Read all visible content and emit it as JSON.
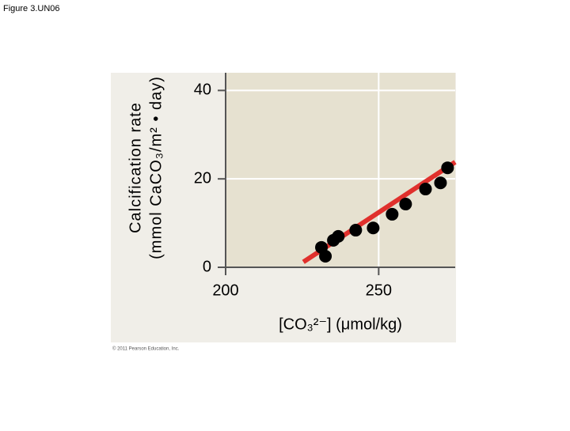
{
  "figure_label": "Figure 3.UN06",
  "copyright": "© 2011 Pearson Education, Inc.",
  "chart_data": {
    "type": "scatter",
    "ylabel": [
      "Calcification rate",
      "(mmol CaCO₃/m² • day)"
    ],
    "xlabel": "[CO₃²⁻] (μmol/kg)",
    "x": [
      231.3,
      232.6,
      235.2,
      236.8,
      242.5,
      248.2,
      254.4,
      258.8,
      265.3,
      270.2,
      272.5
    ],
    "values": [
      4.5,
      2.5,
      6.1,
      7.0,
      8.4,
      8.9,
      12.0,
      14.3,
      17.7,
      19.1,
      22.5
    ],
    "color": "#000000",
    "trendline": {
      "x": [
        225.4,
        275
      ],
      "values": [
        1.2,
        23.8
      ],
      "color": "#e0302c"
    },
    "xlim": [
      200,
      275
    ],
    "xticks": [
      200,
      250
    ],
    "ylim": [
      0,
      44
    ],
    "yticks": [
      0,
      20,
      40
    ],
    "grid": true
  }
}
